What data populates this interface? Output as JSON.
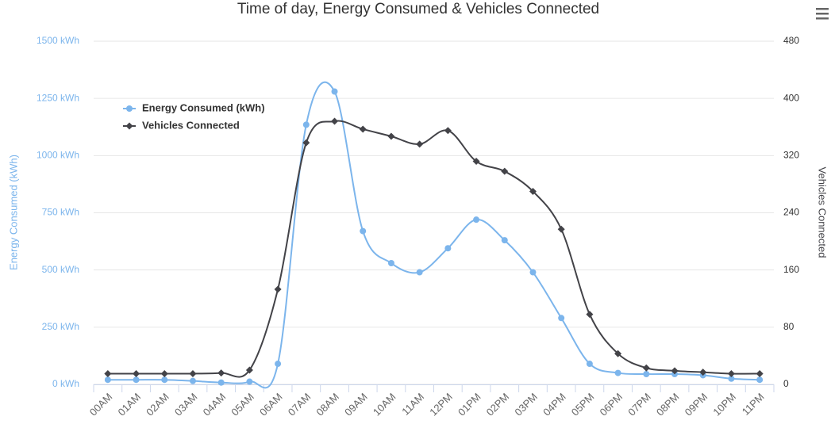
{
  "chart_data": {
    "type": "line",
    "title": "Time of day, Energy Consumed & Vehicles Connected",
    "categories": [
      "00AM",
      "01AM",
      "02AM",
      "03AM",
      "04AM",
      "05AM",
      "06AM",
      "07AM",
      "08AM",
      "09AM",
      "10AM",
      "11AM",
      "12PM",
      "01PM",
      "02PM",
      "03PM",
      "04PM",
      "05PM",
      "06PM",
      "07PM",
      "08PM",
      "09PM",
      "10PM",
      "11PM"
    ],
    "series": [
      {
        "name": "Energy Consumed (kWh)",
        "color": "#7cb5ec",
        "marker": "circle",
        "values": [
          20,
          20,
          20,
          15,
          8,
          12,
          90,
          1135,
          1280,
          670,
          530,
          490,
          595,
          720,
          630,
          490,
          290,
          90,
          50,
          45,
          45,
          40,
          25,
          20
        ]
      },
      {
        "name": "Vehicles Connected",
        "color": "#434348",
        "marker": "diamond",
        "axis": "y2",
        "values": [
          15,
          15,
          15,
          15,
          16,
          20,
          133,
          338,
          368,
          357,
          347,
          336,
          355,
          312,
          298,
          270,
          217,
          98,
          43,
          23,
          19,
          17,
          15,
          15
        ]
      }
    ],
    "ylabel": "Energy Consumed (kWh)",
    "y2label": "Vehicles Connected",
    "ylim": [
      0,
      1500
    ],
    "yticks": [
      {
        "value": 0,
        "label": "0 kWh"
      },
      {
        "value": 250,
        "label": "250 kWh"
      },
      {
        "value": 500,
        "label": "500 kWh"
      },
      {
        "value": 750,
        "label": "750 kWh"
      },
      {
        "value": 1000,
        "label": "1000 kWh"
      },
      {
        "value": 1250,
        "label": "1250 kWh"
      },
      {
        "value": 1500,
        "label": "1500 kWh"
      }
    ],
    "y2lim": [
      0,
      480
    ],
    "y2ticks": [
      0,
      80,
      160,
      240,
      320,
      400,
      480
    ],
    "grid": true,
    "legend": "top-left"
  }
}
